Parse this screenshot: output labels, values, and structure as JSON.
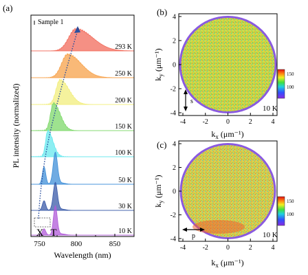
{
  "panels": {
    "a": {
      "label": "(a)",
      "legend": "Sample 1",
      "xlabel": "Wavelength (nm)",
      "ylabel": "PL intensity (normalized)",
      "xticks": [
        "750",
        "800",
        "850"
      ],
      "peak_labels": [
        "X",
        "T"
      ]
    },
    "b": {
      "label": "(b)",
      "xlabel": "k",
      "xlabel_sub": "x",
      "xlabel_unit": " (μm⁻¹)",
      "ylabel": "k",
      "ylabel_sub": "y",
      "ylabel_unit": " (μm⁻¹)",
      "temp": "10 K",
      "polarization": "s",
      "colorbar_ticks": [
        "150",
        "100"
      ]
    },
    "c": {
      "label": "(c)",
      "xlabel": "k",
      "xlabel_sub": "x",
      "xlabel_unit": " (μm⁻¹)",
      "ylabel": "k",
      "ylabel_sub": "y",
      "ylabel_unit": " (μm⁻¹)",
      "temp": "10 K",
      "polarization": "p",
      "colorbar_ticks": [
        "150",
        "100"
      ]
    }
  },
  "chart_data": [
    {
      "type": "line",
      "panel": "a",
      "xlabel": "Wavelength (nm)",
      "ylabel": "PL intensity (normalized)",
      "xlim": [
        740,
        850
      ],
      "series": [
        {
          "name": "293 K",
          "peak_nm": 788,
          "color": "#f26b5b"
        },
        {
          "name": "250 K",
          "peak_nm": 779,
          "color": "#f7a24a"
        },
        {
          "name": "200 K",
          "peak_nm": 771,
          "color": "#f2ee7c"
        },
        {
          "name": "150 K",
          "peak_nm": 764,
          "color": "#7ed86a"
        },
        {
          "name": "100 K",
          "peak_nm": 758,
          "color": "#66e8ee"
        },
        {
          "name": "50 K",
          "peak_nm": 766,
          "color": "#3f8fd8"
        },
        {
          "name": "30 K",
          "peak_nm": 766,
          "color": "#3a5aa8"
        },
        {
          "name": "10 K",
          "peak_nm": 766,
          "color": "#b05ad8"
        }
      ]
    },
    {
      "type": "heatmap",
      "panel": "b",
      "xlim": [
        -4,
        4
      ],
      "ylim": [
        -4,
        4
      ],
      "xticks": [
        -4,
        -2,
        0,
        2,
        4
      ],
      "yticks": [
        -4,
        -2,
        0,
        2,
        4
      ],
      "colorbar_range": [
        80,
        165
      ]
    },
    {
      "type": "heatmap",
      "panel": "c",
      "xlim": [
        -4,
        4
      ],
      "ylim": [
        -4,
        4
      ],
      "xticks": [
        -4,
        -2,
        0,
        2,
        4
      ],
      "yticks": [
        -4,
        -2,
        0,
        2,
        4
      ],
      "colorbar_range": [
        80,
        165
      ]
    }
  ]
}
